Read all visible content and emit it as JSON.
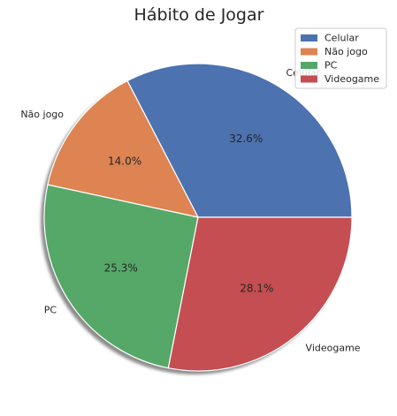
{
  "chart_data": {
    "type": "pie",
    "title": "Hábito de Jogar",
    "categories": [
      "Celular",
      "Não jogo",
      "PC",
      "Videogame"
    ],
    "values": [
      32.6,
      14.0,
      25.3,
      28.1
    ],
    "percent_labels": [
      "32.6%",
      "14.0%",
      "25.3%",
      "28.1%"
    ],
    "colors": [
      "#4c72b0",
      "#dd8452",
      "#55a868",
      "#c44e52"
    ],
    "start_angle_deg": 0,
    "direction": "counterclockwise",
    "shadow": true,
    "legend": {
      "position": "top-right",
      "entries": [
        "Celular",
        "Não jogo",
        "PC",
        "Videogame"
      ]
    }
  }
}
